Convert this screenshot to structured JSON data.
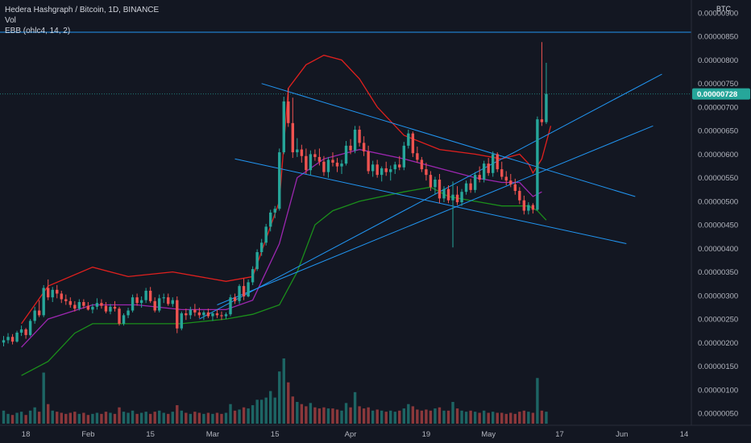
{
  "header": {
    "symbol_line": "Hedera Hashgraph / Bitcoin, 1D, BINANCE",
    "volume_label": "Vol",
    "indicator_label": "EBB (ohlc4, 14, 2)"
  },
  "price_axis": {
    "currency": "BTC",
    "current_price_label": "0.00000728",
    "tick_labels": [
      "0.00000850",
      "0.00000800",
      "0.00000750",
      "0.00000700",
      "0.00000650",
      "0.00000600",
      "0.00000550",
      "0.00000500",
      "0.00000450",
      "0.00000400",
      "0.00000350",
      "0.00000300",
      "0.00000250",
      "0.00000200",
      "0.00000150",
      "0.00000100",
      "0.00000050"
    ],
    "top_partial_label": "0.00000900"
  },
  "time_axis": {
    "labels": [
      "18",
      "Feb",
      "15",
      "Mar",
      "15",
      "Apr",
      "19",
      "May",
      "17",
      "Jun",
      "14"
    ]
  },
  "colors": {
    "background": "#131722",
    "up_candle": "#26a69a",
    "down_candle": "#ef5350",
    "upper_band": "#e0201e",
    "lower_band": "#1b8f1b",
    "basis": "#9c27b0",
    "trendline": "#2196f3",
    "current_price_tag": "#26a69a"
  },
  "chart_data": {
    "type": "candlestick",
    "title": "Hedera Hashgraph / Bitcoin, 1D, BINANCE",
    "ylim": [
      3e-07,
      9e-06
    ],
    "y_unit": "BTC",
    "last_price": 7.28e-06,
    "x_start_date": "2021-01-13",
    "ohlc": [
      [
        2e-06,
        2.14e-06,
        1.92e-06,
        2.05e-06
      ],
      [
        2.05e-06,
        2.2e-06,
        1.98e-06,
        2.12e-06
      ],
      [
        2.12e-06,
        2.18e-06,
        1.96e-06,
        2.02e-06
      ],
      [
        2.02e-06,
        2.25e-06,
        2e-06,
        2.21e-06
      ],
      [
        2.21e-06,
        2.36e-06,
        2.14e-06,
        2.28e-06
      ],
      [
        2.28e-06,
        2.31e-06,
        2.08e-06,
        2.16e-06
      ],
      [
        2.16e-06,
        2.5e-06,
        2.13e-06,
        2.46e-06
      ],
      [
        2.46e-06,
        2.76e-06,
        2.4e-06,
        2.68e-06
      ],
      [
        2.68e-06,
        2.9e-06,
        2.54e-06,
        2.58e-06
      ],
      [
        2.58e-06,
        3.22e-06,
        2.54e-06,
        3.16e-06
      ],
      [
        3.16e-06,
        3.34e-06,
        2.9e-06,
        2.96e-06
      ],
      [
        2.96e-06,
        3.18e-06,
        2.86e-06,
        3.12e-06
      ],
      [
        3.12e-06,
        3.22e-06,
        2.94e-06,
        3.04e-06
      ],
      [
        3.04e-06,
        3.1e-06,
        2.84e-06,
        2.92e-06
      ],
      [
        2.92e-06,
        3.02e-06,
        2.8e-06,
        2.88e-06
      ],
      [
        2.88e-06,
        2.96e-06,
        2.74e-06,
        2.8e-06
      ],
      [
        2.8e-06,
        2.88e-06,
        2.66e-06,
        2.72e-06
      ],
      [
        2.72e-06,
        2.92e-06,
        2.68e-06,
        2.86e-06
      ],
      [
        2.86e-06,
        2.92e-06,
        2.72e-06,
        2.78e-06
      ],
      [
        2.78e-06,
        2.86e-06,
        2.68e-06,
        2.7e-06
      ],
      [
        2.7e-06,
        2.82e-06,
        2.62e-06,
        2.76e-06
      ],
      [
        2.76e-06,
        2.94e-06,
        2.7e-06,
        2.84e-06
      ],
      [
        2.84e-06,
        2.92e-06,
        2.72e-06,
        2.78e-06
      ],
      [
        2.78e-06,
        2.86e-06,
        2.62e-06,
        2.66e-06
      ],
      [
        2.66e-06,
        2.82e-06,
        2.6e-06,
        2.76e-06
      ],
      [
        2.76e-06,
        2.88e-06,
        2.66e-06,
        2.72e-06
      ],
      [
        2.72e-06,
        2.76e-06,
        2.36e-06,
        2.4e-06
      ],
      [
        2.4e-06,
        2.62e-06,
        2.36e-06,
        2.58e-06
      ],
      [
        2.58e-06,
        2.74e-06,
        2.52e-06,
        2.68e-06
      ],
      [
        2.68e-06,
        3.02e-06,
        2.64e-06,
        2.96e-06
      ],
      [
        2.96e-06,
        3.04e-06,
        2.78e-06,
        2.84e-06
      ],
      [
        2.84e-06,
        2.98e-06,
        2.74e-06,
        2.9e-06
      ],
      [
        2.9e-06,
        3.16e-06,
        2.84e-06,
        3.1e-06
      ],
      [
        3.1e-06,
        3.18e-06,
        2.84e-06,
        2.88e-06
      ],
      [
        2.88e-06,
        2.96e-06,
        2.64e-06,
        2.68e-06
      ],
      [
        2.68e-06,
        3.02e-06,
        2.64e-06,
        2.94e-06
      ],
      [
        2.94e-06,
        3.04e-06,
        2.84e-06,
        2.96e-06
      ],
      [
        2.96e-06,
        3.04e-06,
        2.78e-06,
        2.82e-06
      ],
      [
        2.82e-06,
        2.96e-06,
        2.76e-06,
        2.9e-06
      ],
      [
        2.9e-06,
        2.98e-06,
        2.2e-06,
        2.3e-06
      ],
      [
        2.3e-06,
        2.66e-06,
        2.26e-06,
        2.62e-06
      ],
      [
        2.62e-06,
        2.72e-06,
        2.48e-06,
        2.58e-06
      ],
      [
        2.58e-06,
        2.76e-06,
        2.5e-06,
        2.7e-06
      ],
      [
        2.7e-06,
        2.82e-06,
        2.56e-06,
        2.64e-06
      ],
      [
        2.64e-06,
        2.74e-06,
        2.52e-06,
        2.58e-06
      ],
      [
        2.58e-06,
        2.68e-06,
        2.48e-06,
        2.64e-06
      ],
      [
        2.64e-06,
        2.72e-06,
        2.52e-06,
        2.56e-06
      ],
      [
        2.56e-06,
        2.66e-06,
        2.46e-06,
        2.62e-06
      ],
      [
        2.62e-06,
        2.7e-06,
        2.52e-06,
        2.58e-06
      ],
      [
        2.58e-06,
        2.66e-06,
        2.48e-06,
        2.56e-06
      ],
      [
        2.56e-06,
        2.64e-06,
        2.5e-06,
        2.6e-06
      ],
      [
        2.6e-06,
        3.02e-06,
        2.56e-06,
        2.96e-06
      ],
      [
        2.96e-06,
        3.04e-06,
        2.82e-06,
        2.88e-06
      ],
      [
        2.88e-06,
        3.24e-06,
        2.82e-06,
        3.2e-06
      ],
      [
        3.2e-06,
        3.36e-06,
        2.9e-06,
        2.98e-06
      ],
      [
        2.98e-06,
        3.34e-06,
        2.96e-06,
        3.28e-06
      ],
      [
        3.28e-06,
        3.62e-06,
        3.22e-06,
        3.56e-06
      ],
      [
        3.56e-06,
        3.98e-06,
        3.52e-06,
        3.92e-06
      ],
      [
        3.92e-06,
        4.2e-06,
        3.84e-06,
        4.12e-06
      ],
      [
        4.12e-06,
        4.52e-06,
        4.06e-06,
        4.46e-06
      ],
      [
        4.46e-06,
        4.82e-06,
        4.36e-06,
        4.76e-06
      ],
      [
        4.76e-06,
        4.9e-06,
        4.64e-06,
        4.84e-06
      ],
      [
        4.84e-06,
        6.12e-06,
        4.8e-06,
        6.04e-06
      ],
      [
        6.04e-06,
        7.22e-06,
        6e-06,
        7.12e-06
      ],
      [
        7.12e-06,
        7.4e-06,
        6.58e-06,
        6.66e-06
      ],
      [
        6.66e-06,
        7.2e-06,
        5.92e-06,
        6.04e-06
      ],
      [
        6.04e-06,
        6.34e-06,
        5.94e-06,
        6.1e-06
      ],
      [
        6.1e-06,
        6.2e-06,
        5.82e-06,
        5.96e-06
      ],
      [
        5.96e-06,
        6.12e-06,
        5.58e-06,
        5.66e-06
      ],
      [
        5.66e-06,
        6.08e-06,
        5.56e-06,
        6e-06
      ],
      [
        6e-06,
        6.1e-06,
        5.86e-06,
        5.94e-06
      ],
      [
        5.94e-06,
        6.12e-06,
        5.76e-06,
        5.84e-06
      ],
      [
        5.84e-06,
        5.96e-06,
        5.54e-06,
        5.62e-06
      ],
      [
        5.62e-06,
        5.94e-06,
        5.5e-06,
        5.88e-06
      ],
      [
        5.88e-06,
        6.04e-06,
        5.74e-06,
        5.82e-06
      ],
      [
        5.82e-06,
        5.92e-06,
        5.62e-06,
        5.74e-06
      ],
      [
        5.74e-06,
        5.88e-06,
        5.58e-06,
        5.8e-06
      ],
      [
        5.8e-06,
        6.28e-06,
        5.76e-06,
        6.18e-06
      ],
      [
        6.18e-06,
        6.32e-06,
        6e-06,
        6.08e-06
      ],
      [
        6.08e-06,
        6.6e-06,
        6.02e-06,
        6.52e-06
      ],
      [
        6.52e-06,
        6.6e-06,
        6.16e-06,
        6.24e-06
      ],
      [
        6.24e-06,
        6.38e-06,
        5.96e-06,
        6.06e-06
      ],
      [
        6.06e-06,
        6.18e-06,
        5.58e-06,
        5.64e-06
      ],
      [
        5.64e-06,
        5.86e-06,
        5.52e-06,
        5.78e-06
      ],
      [
        5.78e-06,
        5.88e-06,
        5.5e-06,
        5.56e-06
      ],
      [
        5.56e-06,
        5.74e-06,
        5.42e-06,
        5.7e-06
      ],
      [
        5.7e-06,
        5.84e-06,
        5.54e-06,
        5.62e-06
      ],
      [
        5.62e-06,
        5.76e-06,
        5.44e-06,
        5.68e-06
      ],
      [
        5.68e-06,
        5.84e-06,
        5.58e-06,
        5.78e-06
      ],
      [
        5.78e-06,
        5.96e-06,
        5.66e-06,
        5.72e-06
      ],
      [
        5.72e-06,
        6.26e-06,
        5.66e-06,
        6.18e-06
      ],
      [
        6.18e-06,
        6.52e-06,
        6.12e-06,
        6.44e-06
      ],
      [
        6.44e-06,
        6.48e-06,
        5.94e-06,
        6.02e-06
      ],
      [
        6.02e-06,
        6.16e-06,
        5.82e-06,
        5.88e-06
      ],
      [
        5.88e-06,
        5.94e-06,
        5.62e-06,
        5.68e-06
      ],
      [
        5.68e-06,
        5.82e-06,
        5.44e-06,
        5.56e-06
      ],
      [
        5.56e-06,
        5.64e-06,
        5.22e-06,
        5.3e-06
      ],
      [
        5.3e-06,
        5.52e-06,
        5.14e-06,
        5.46e-06
      ],
      [
        5.46e-06,
        5.58e-06,
        4.96e-06,
        5.06e-06
      ],
      [
        5.06e-06,
        5.32e-06,
        4.98e-06,
        5.26e-06
      ],
      [
        5.26e-06,
        5.34e-06,
        4.96e-06,
        5.02e-06
      ],
      [
        5.02e-06,
        5.42e-06,
        4.02e-06,
        5.14e-06
      ],
      [
        5.14e-06,
        5.32e-06,
        4.92e-06,
        4.98e-06
      ],
      [
        4.98e-06,
        5.26e-06,
        4.9e-06,
        5.2e-06
      ],
      [
        5.2e-06,
        5.44e-06,
        5.14e-06,
        5.38e-06
      ],
      [
        5.38e-06,
        5.48e-06,
        5.18e-06,
        5.24e-06
      ],
      [
        5.24e-06,
        5.62e-06,
        5.18e-06,
        5.56e-06
      ],
      [
        5.56e-06,
        5.74e-06,
        5.4e-06,
        5.46e-06
      ],
      [
        5.46e-06,
        5.86e-06,
        5.4e-06,
        5.8e-06
      ],
      [
        5.8e-06,
        5.92e-06,
        5.54e-06,
        5.6e-06
      ],
      [
        5.6e-06,
        6.06e-06,
        5.52e-06,
        6e-06
      ],
      [
        6e-06,
        6.04e-06,
        5.62e-06,
        5.68e-06
      ],
      [
        5.68e-06,
        5.84e-06,
        5.46e-06,
        5.52e-06
      ],
      [
        5.52e-06,
        5.64e-06,
        5.34e-06,
        5.44e-06
      ],
      [
        5.44e-06,
        5.58e-06,
        5.3e-06,
        5.36e-06
      ],
      [
        5.36e-06,
        5.48e-06,
        5.14e-06,
        5.22e-06
      ],
      [
        5.22e-06,
        5.3e-06,
        4.94e-06,
        5.02e-06
      ],
      [
        5.02e-06,
        5.12e-06,
        4.72e-06,
        4.8e-06
      ],
      [
        4.8e-06,
        4.98e-06,
        4.72e-06,
        4.92e-06
      ],
      [
        4.92e-06,
        4.96e-06,
        4.74e-06,
        4.82e-06
      ],
      [
        4.82e-06,
        6.8e-06,
        4.8e-06,
        6.74e-06
      ],
      [
        6.74e-06,
        8.38e-06,
        6.6e-06,
        6.68e-06
      ],
      [
        6.68e-06,
        7.94e-06,
        6.64e-06,
        7.28e-06
      ]
    ],
    "volume": [
      0.6,
      0.45,
      0.4,
      0.5,
      0.55,
      0.4,
      0.6,
      0.75,
      0.55,
      2.35,
      0.9,
      0.6,
      0.55,
      0.5,
      0.45,
      0.5,
      0.55,
      0.45,
      0.5,
      0.4,
      0.45,
      0.5,
      0.45,
      0.55,
      0.5,
      0.45,
      0.75,
      0.55,
      0.5,
      0.6,
      0.45,
      0.5,
      0.55,
      0.45,
      0.55,
      0.6,
      0.5,
      0.45,
      0.55,
      0.85,
      0.6,
      0.5,
      0.45,
      0.55,
      0.5,
      0.45,
      0.5,
      0.45,
      0.5,
      0.45,
      0.5,
      0.9,
      0.6,
      0.65,
      0.75,
      0.7,
      0.85,
      1.1,
      1.1,
      1.2,
      1.5,
      1.2,
      2.4,
      3.0,
      1.9,
      1.25,
      1.0,
      0.9,
      0.8,
      0.95,
      0.75,
      0.7,
      0.75,
      0.7,
      0.7,
      0.65,
      0.6,
      0.95,
      0.75,
      1.45,
      0.8,
      0.7,
      0.75,
      0.6,
      0.65,
      0.6,
      0.55,
      0.6,
      0.55,
      0.6,
      0.7,
      0.9,
      0.8,
      0.65,
      0.6,
      0.65,
      0.6,
      0.7,
      0.75,
      0.6,
      0.6,
      1.0,
      0.7,
      0.6,
      0.55,
      0.6,
      0.55,
      0.5,
      0.6,
      0.5,
      0.55,
      0.5,
      0.5,
      0.45,
      0.5,
      0.45,
      0.55,
      0.6,
      0.55,
      0.5,
      2.1,
      0.6,
      0.55
    ],
    "upper_band": [
      [
        4,
        2.4e-06
      ],
      [
        10,
        3.2e-06
      ],
      [
        20,
        3.6e-06
      ],
      [
        28,
        3.4e-06
      ],
      [
        38,
        3.5e-06
      ],
      [
        50,
        3.3e-06
      ],
      [
        56,
        3.4e-06
      ],
      [
        62,
        5e-06
      ],
      [
        64,
        7.4e-06
      ],
      [
        68,
        7.9e-06
      ],
      [
        72,
        8.1e-06
      ],
      [
        76,
        8e-06
      ],
      [
        80,
        7.6e-06
      ],
      [
        84,
        7e-06
      ],
      [
        90,
        6.4e-06
      ],
      [
        98,
        6.1e-06
      ],
      [
        106,
        6e-06
      ],
      [
        112,
        5.9e-06
      ],
      [
        116,
        6e-06
      ],
      [
        118,
        5.8e-06
      ],
      [
        119,
        5.6e-06
      ],
      [
        121,
        5.9e-06
      ],
      [
        123,
        6.6e-06
      ]
    ],
    "basis": [
      [
        4,
        1.9e-06
      ],
      [
        10,
        2.5e-06
      ],
      [
        20,
        2.8e-06
      ],
      [
        30,
        2.8e-06
      ],
      [
        40,
        2.7e-06
      ],
      [
        50,
        2.7e-06
      ],
      [
        56,
        2.9e-06
      ],
      [
        62,
        4.1e-06
      ],
      [
        66,
        5.5e-06
      ],
      [
        72,
        5.9e-06
      ],
      [
        80,
        6.1e-06
      ],
      [
        90,
        5.9e-06
      ],
      [
        98,
        5.7e-06
      ],
      [
        106,
        5.5e-06
      ],
      [
        112,
        5.4e-06
      ],
      [
        116,
        5.4e-06
      ],
      [
        118,
        5.2e-06
      ],
      [
        119,
        5.1e-06
      ],
      [
        121,
        5.2e-06
      ]
    ],
    "lower_band": [
      [
        4,
        1.3e-06
      ],
      [
        10,
        1.6e-06
      ],
      [
        16,
        2.2e-06
      ],
      [
        20,
        2.4e-06
      ],
      [
        30,
        2.4e-06
      ],
      [
        40,
        2.4e-06
      ],
      [
        50,
        2.5e-06
      ],
      [
        56,
        2.6e-06
      ],
      [
        62,
        2.8e-06
      ],
      [
        66,
        3.5e-06
      ],
      [
        70,
        4.5e-06
      ],
      [
        74,
        4.8e-06
      ],
      [
        80,
        5e-06
      ],
      [
        90,
        5.2e-06
      ],
      [
        96,
        5.3e-06
      ],
      [
        100,
        5.1e-06
      ],
      [
        106,
        5e-06
      ],
      [
        112,
        4.9e-06
      ],
      [
        116,
        4.9e-06
      ],
      [
        118,
        4.9e-06
      ],
      [
        120,
        4.8e-06
      ],
      [
        122,
        4.6e-06
      ]
    ],
    "trendlines": [
      {
        "from": [
          58,
          7.5e-06
        ],
        "to": [
          142,
          5.1e-06
        ]
      },
      {
        "from": [
          52,
          5.9e-06
        ],
        "to": [
          140,
          4.1e-06
        ]
      },
      {
        "from": [
          44,
          2.5e-06
        ],
        "to": [
          148,
          7.7e-06
        ]
      },
      {
        "from": [
          48,
          2.8e-06
        ],
        "to": [
          146,
          6.6e-06
        ]
      }
    ],
    "horizontal_line": 8.59e-06
  }
}
